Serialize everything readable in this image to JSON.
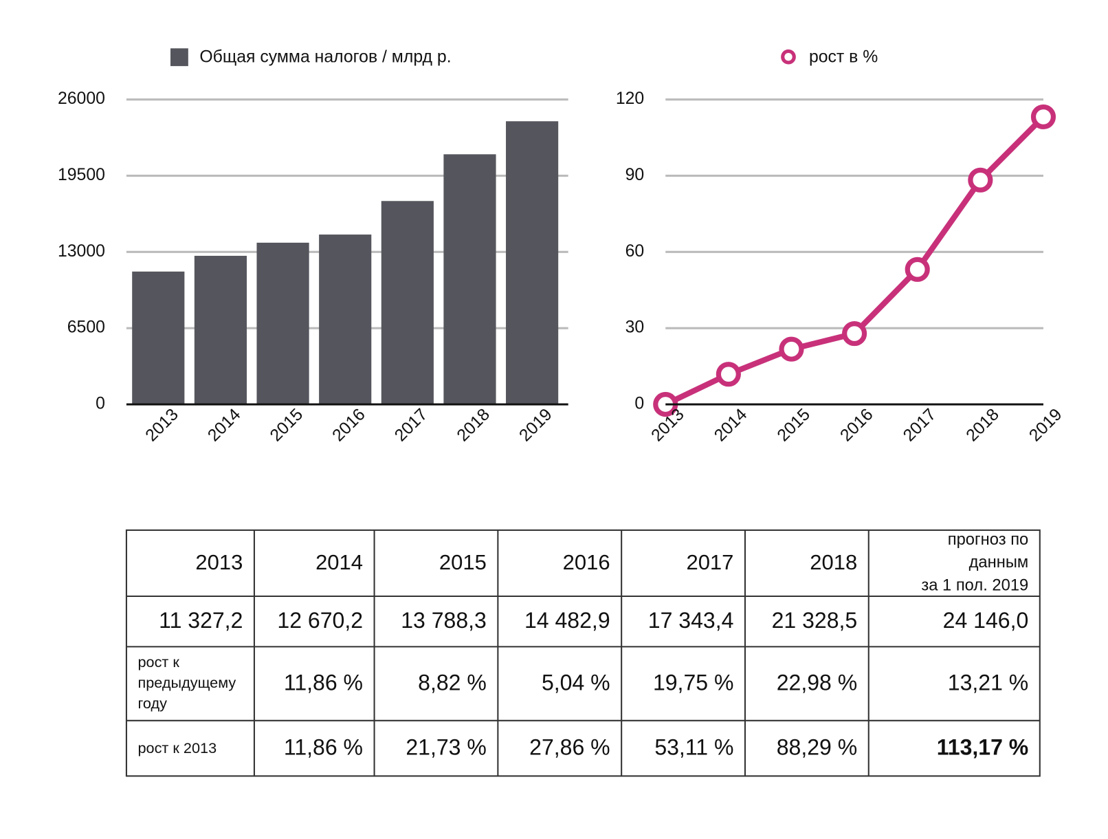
{
  "chart_data": [
    {
      "type": "bar",
      "categories": [
        "2013",
        "2014",
        "2015",
        "2016",
        "2017",
        "2018",
        "2019"
      ],
      "series": [
        {
          "name": "Общая сумма налогов / млрд р.",
          "color": "#55565d",
          "values": [
            11327.2,
            12670.2,
            13788.3,
            14482.9,
            17343.4,
            21328.5,
            24146.0
          ]
        }
      ],
      "ylim": [
        0,
        26000
      ],
      "yticks": [
        0,
        6500,
        13000,
        19500,
        26000
      ],
      "grid": true
    },
    {
      "type": "line",
      "categories": [
        "2013",
        "2014",
        "2015",
        "2016",
        "2017",
        "2018",
        "2019"
      ],
      "series": [
        {
          "name": "рост в %",
          "color": "#c8317a",
          "values": [
            0,
            11.86,
            21.73,
            27.86,
            53.11,
            88.29,
            113.17
          ]
        }
      ],
      "ylim": [
        0,
        120
      ],
      "yticks": [
        0,
        30,
        60,
        90,
        120
      ],
      "grid": true
    }
  ],
  "table": {
    "header": [
      "2013",
      "2014",
      "2015",
      "2016",
      "2017",
      "2018",
      [
        "прогноз по",
        "данным",
        "за 1 пол. 2019"
      ]
    ],
    "rows": [
      [
        "11 327,2",
        "12 670,2",
        "13 788,3",
        "14 482,9",
        "17 343,4",
        "21 328,5",
        "24 146,0"
      ],
      [
        [
          "рост к",
          "предыдущему",
          "году"
        ],
        "11,86 %",
        "8,82 %",
        "5,04 %",
        "19,75 %",
        "22,98 %",
        "13,21 %"
      ],
      [
        "рост к 2013",
        "11,86 %",
        "21,73 %",
        "27,86 %",
        "53,11 %",
        "88,29 %",
        "113,17 %"
      ]
    ]
  }
}
